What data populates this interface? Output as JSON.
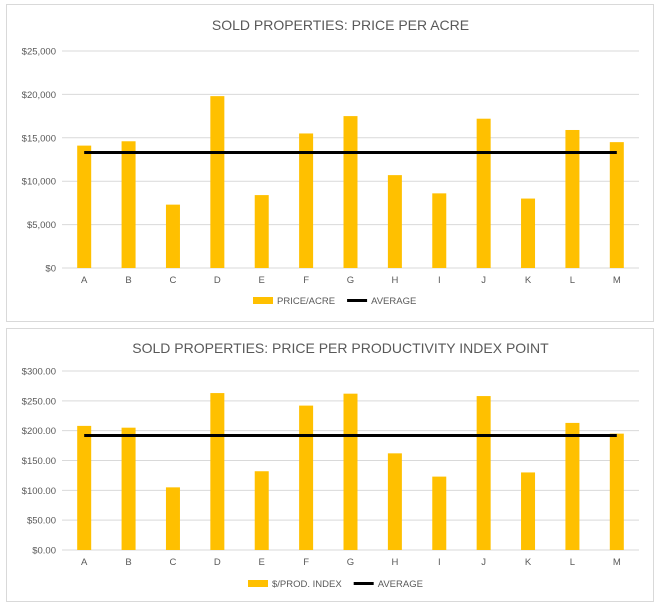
{
  "colors": {
    "bar": "#FFC000",
    "average": "#000000",
    "grid": "#d9d9d9",
    "text": "#595959"
  },
  "chart_data": [
    {
      "type": "bar",
      "title": "SOLD PROPERTIES: PRICE PER ACRE",
      "categories": [
        "A",
        "B",
        "C",
        "D",
        "E",
        "F",
        "G",
        "H",
        "I",
        "J",
        "K",
        "L",
        "M"
      ],
      "series": [
        {
          "name": "PRICE/ACRE",
          "type": "bar",
          "values": [
            14100,
            14600,
            7300,
            19800,
            8400,
            15500,
            17500,
            10700,
            8600,
            17200,
            8000,
            15900,
            14500
          ]
        },
        {
          "name": "AVERAGE",
          "type": "line",
          "values": [
            13300,
            13300,
            13300,
            13300,
            13300,
            13300,
            13300,
            13300,
            13300,
            13300,
            13300,
            13300,
            13300
          ]
        }
      ],
      "ylim": [
        0,
        25000
      ],
      "yticks": [
        0,
        5000,
        10000,
        15000,
        20000,
        25000
      ],
      "ytick_labels": [
        "$0",
        "$5,000",
        "$10,000",
        "$15,000",
        "$20,000",
        "$25,000"
      ],
      "grid": true,
      "legend": "bottom"
    },
    {
      "type": "bar",
      "title": "SOLD PROPERTIES: PRICE PER PRODUCTIVITY INDEX  POINT",
      "categories": [
        "A",
        "B",
        "C",
        "D",
        "E",
        "F",
        "G",
        "H",
        "I",
        "J",
        "K",
        "L",
        "M"
      ],
      "series": [
        {
          "name": "$/PROD. INDEX",
          "type": "bar",
          "values": [
            208,
            205,
            105,
            263,
            132,
            242,
            262,
            162,
            123,
            258,
            130,
            213,
            195
          ]
        },
        {
          "name": "AVERAGE",
          "type": "line",
          "values": [
            192,
            192,
            192,
            192,
            192,
            192,
            192,
            192,
            192,
            192,
            192,
            192,
            192
          ]
        }
      ],
      "ylim": [
        0,
        300
      ],
      "yticks": [
        0,
        50,
        100,
        150,
        200,
        250,
        300
      ],
      "ytick_labels": [
        "$0.00",
        "$50.00",
        "$100.00",
        "$150.00",
        "$200.00",
        "$250.00",
        "$300.00"
      ],
      "grid": true,
      "legend": "bottom"
    }
  ]
}
